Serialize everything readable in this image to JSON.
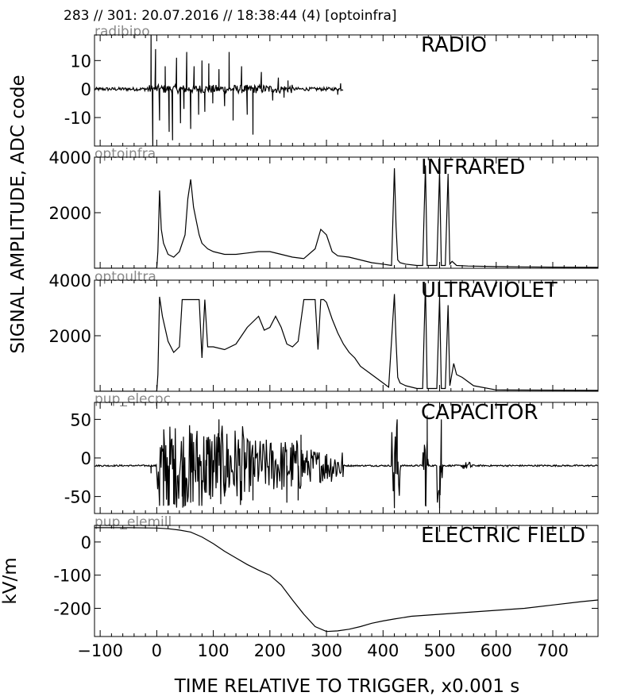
{
  "header": "283 // 301:   20.07.2016 // 18:38:44 (4)  [optoinfra]",
  "ylabel_main": "SIGNAL AMPLITUDE,  ADC code",
  "xlabel": "TIME RELATIVE TO TRIGGER,   x0.001 s",
  "colors": {
    "line": "#000000",
    "sensor_label": "#888888",
    "axes": "#000000"
  },
  "chart_data": [
    {
      "type": "line",
      "sensor": "radibipo",
      "panel_label": "RADIO",
      "ylabel": "",
      "xlim": [
        -110,
        780
      ],
      "ylim": [
        -20,
        19
      ],
      "yticks": [
        10,
        0,
        -10
      ],
      "yticklabels": [
        "10",
        "0",
        "-10"
      ],
      "active_range": [
        -110,
        330
      ],
      "baseline": 0,
      "spikes": [
        [
          -10,
          19
        ],
        [
          -7,
          -20
        ],
        [
          -2,
          14
        ],
        [
          5,
          -11
        ],
        [
          15,
          8
        ],
        [
          22,
          -15
        ],
        [
          28,
          -18
        ],
        [
          35,
          11
        ],
        [
          42,
          -12
        ],
        [
          48,
          -7
        ],
        [
          53,
          13
        ],
        [
          60,
          -14
        ],
        [
          66,
          8
        ],
        [
          74,
          -9
        ],
        [
          80,
          10
        ],
        [
          85,
          -8
        ],
        [
          92,
          9
        ],
        [
          99,
          -5
        ],
        [
          110,
          7
        ],
        [
          120,
          -6
        ],
        [
          128,
          13
        ],
        [
          135,
          -11
        ],
        [
          150,
          8
        ],
        [
          160,
          -9
        ],
        [
          170,
          -16
        ],
        [
          185,
          6
        ],
        [
          205,
          -4
        ],
        [
          215,
          4
        ],
        [
          225,
          -3
        ],
        [
          232,
          3
        ],
        [
          320,
          -2
        ],
        [
          325,
          2
        ]
      ]
    },
    {
      "type": "line",
      "sensor": "optoinfra",
      "panel_label": "INFRARED",
      "ylabel": "",
      "xlim": [
        -110,
        780
      ],
      "ylim": [
        0,
        4000
      ],
      "yticks": [
        4000,
        2000
      ],
      "yticklabels": [
        "4000",
        "2000"
      ],
      "x": [
        -110,
        0,
        2,
        5,
        8,
        12,
        20,
        30,
        40,
        50,
        55,
        60,
        65,
        70,
        75,
        80,
        90,
        100,
        120,
        140,
        160,
        180,
        200,
        220,
        240,
        260,
        280,
        290,
        300,
        310,
        320,
        340,
        360,
        380,
        400,
        415,
        420,
        423,
        426,
        430,
        440,
        460,
        470,
        475,
        478,
        485,
        495,
        500,
        503,
        510,
        515,
        518,
        522,
        530,
        550,
        600,
        650,
        700,
        780
      ],
      "y": [
        0,
        0,
        600,
        2800,
        1400,
        900,
        500,
        400,
        600,
        1200,
        2500,
        3200,
        2200,
        1700,
        1200,
        900,
        700,
        600,
        500,
        500,
        550,
        600,
        600,
        500,
        400,
        350,
        700,
        1400,
        1200,
        600,
        450,
        400,
        300,
        200,
        150,
        100,
        3600,
        1500,
        300,
        200,
        150,
        100,
        100,
        3700,
        100,
        100,
        100,
        3500,
        100,
        100,
        3400,
        150,
        250,
        100,
        80,
        60,
        50,
        40,
        30
      ]
    },
    {
      "type": "line",
      "sensor": "optoultra",
      "panel_label": "ULTRAVIOLET",
      "ylabel": "",
      "xlim": [
        -110,
        780
      ],
      "ylim": [
        0,
        4000
      ],
      "yticks": [
        4000,
        2000
      ],
      "yticklabels": [
        "4000",
        "2000"
      ],
      "x": [
        -110,
        0,
        2,
        5,
        10,
        20,
        30,
        40,
        45,
        60,
        75,
        80,
        85,
        90,
        100,
        120,
        140,
        160,
        180,
        190,
        200,
        210,
        220,
        230,
        240,
        250,
        260,
        270,
        280,
        285,
        290,
        295,
        300,
        310,
        320,
        330,
        340,
        350,
        360,
        380,
        400,
        410,
        420,
        423,
        426,
        430,
        440,
        460,
        470,
        475,
        478,
        485,
        495,
        500,
        503,
        510,
        515,
        518,
        525,
        530,
        540,
        560,
        600,
        700,
        780
      ],
      "y": [
        0,
        0,
        600,
        3400,
        2700,
        1800,
        1400,
        1600,
        3300,
        3300,
        3300,
        1200,
        3300,
        1600,
        1600,
        1500,
        1700,
        2300,
        2700,
        2200,
        2300,
        2700,
        2300,
        1700,
        1600,
        1800,
        3300,
        3300,
        3300,
        1500,
        3300,
        3300,
        3200,
        2600,
        2100,
        1700,
        1400,
        1200,
        900,
        600,
        300,
        150,
        3500,
        1800,
        500,
        300,
        200,
        100,
        100,
        3900,
        100,
        100,
        100,
        3400,
        100,
        100,
        3100,
        200,
        1000,
        600,
        500,
        200,
        50,
        40,
        30
      ]
    },
    {
      "type": "line",
      "sensor": "pup_elecpc",
      "panel_label": "CAPACITOR",
      "ylabel": "",
      "xlim": [
        -110,
        780
      ],
      "ylim": [
        -72,
        72
      ],
      "yticks": [
        50,
        0,
        -50
      ],
      "yticklabels": [
        "50",
        "0",
        "-50"
      ],
      "baseline": -10,
      "noise_regions": [
        [
          0,
          100,
          55
        ],
        [
          100,
          160,
          52
        ],
        [
          160,
          260,
          35
        ],
        [
          260,
          330,
          22
        ],
        [
          415,
          430,
          55
        ],
        [
          470,
          480,
          55
        ],
        [
          495,
          505,
          50
        ],
        [
          540,
          560,
          5
        ]
      ],
      "spikes": [
        [
          -10,
          -20
        ],
        [
          5,
          -62
        ],
        [
          12,
          -62
        ],
        [
          20,
          -62
        ],
        [
          30,
          -60
        ],
        [
          45,
          -50
        ],
        [
          60,
          -58
        ],
        [
          75,
          -62
        ],
        [
          88,
          -45
        ],
        [
          110,
          50
        ],
        [
          120,
          -50
        ],
        [
          150,
          -55
        ],
        [
          170,
          -55
        ],
        [
          230,
          -58
        ],
        [
          250,
          -55
        ],
        [
          255,
          30
        ],
        [
          420,
          -65
        ],
        [
          425,
          50
        ],
        [
          475,
          -62
        ],
        [
          478,
          55
        ],
        [
          500,
          -65
        ],
        [
          503,
          50
        ]
      ]
    },
    {
      "type": "line",
      "sensor": "pup_elemill",
      "panel_label": "ELECTRIC FIELD",
      "ylabel": "kV/m",
      "xlim": [
        -110,
        780
      ],
      "ylim": [
        -285,
        50
      ],
      "yticks": [
        0,
        -100,
        -200
      ],
      "yticklabels": [
        "0",
        "-100",
        "-200"
      ],
      "x": [
        -110,
        -50,
        0,
        20,
        40,
        60,
        80,
        100,
        120,
        140,
        160,
        180,
        200,
        220,
        240,
        260,
        280,
        300,
        320,
        340,
        360,
        380,
        400,
        420,
        450,
        500,
        550,
        600,
        650,
        700,
        750,
        780
      ],
      "y": [
        43,
        43,
        42,
        40,
        36,
        30,
        15,
        -5,
        -28,
        -48,
        -68,
        -85,
        -100,
        -130,
        -175,
        -218,
        -255,
        -270,
        -268,
        -263,
        -255,
        -245,
        -238,
        -232,
        -224,
        -218,
        -212,
        -206,
        -200,
        -190,
        -180,
        -175
      ]
    }
  ],
  "xaxis": {
    "ticks": [
      -100,
      0,
      100,
      200,
      300,
      400,
      500,
      600,
      700
    ],
    "ticklabels": [
      "−100",
      "0",
      "100",
      "200",
      "300",
      "400",
      "500",
      "600",
      "700"
    ]
  }
}
